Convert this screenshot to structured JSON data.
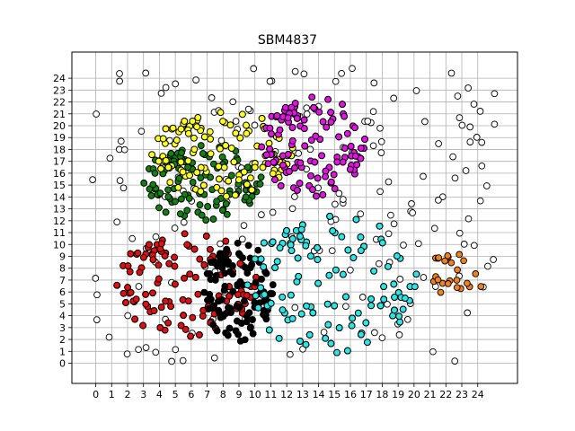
{
  "chart_data": {
    "type": "scatter",
    "title": "SBM4837",
    "xlabel": "",
    "ylabel": "",
    "xlim": [
      -1.5,
      26.5
    ],
    "ylim": [
      -1.7,
      26.2
    ],
    "xticks": [
      0,
      1,
      2,
      3,
      4,
      5,
      6,
      7,
      8,
      9,
      10,
      11,
      12,
      13,
      14,
      15,
      16,
      17,
      18,
      19,
      20,
      21,
      22,
      23,
      24
    ],
    "yticks": [
      0,
      1,
      2,
      3,
      4,
      5,
      6,
      7,
      8,
      9,
      10,
      11,
      12,
      13,
      14,
      15,
      16,
      17,
      18,
      19,
      20,
      21,
      22,
      23,
      24
    ],
    "grid": true,
    "marker_edge_color": "#000000",
    "clusters": [
      {
        "color": "#ffffff",
        "x_range": [
          -0.2,
          25.2
        ],
        "y_range": [
          0.0,
          24.9
        ],
        "approx_points": 190
      },
      {
        "color": "#e01010",
        "x_range": [
          1.3,
          10.2
        ],
        "y_range": [
          2.2,
          11.0
        ],
        "approx_points": 420
      },
      {
        "color": "#000000",
        "x_range": [
          6.8,
          11.2
        ],
        "y_range": [
          1.8,
          10.2
        ],
        "approx_points": 260
      },
      {
        "color": "#2ae6e6",
        "x_range": [
          9.5,
          20.3
        ],
        "y_range": [
          0.8,
          12.5
        ],
        "approx_points": 620
      },
      {
        "color": "#128012",
        "x_range": [
          3.0,
          10.5
        ],
        "y_range": [
          12.0,
          18.4
        ],
        "approx_points": 220
      },
      {
        "color": "#ffff22",
        "x_range": [
          3.5,
          12.5
        ],
        "y_range": [
          14.0,
          21.2
        ],
        "approx_points": 300
      },
      {
        "color": "#e214e2",
        "x_range": [
          10.4,
          17.0
        ],
        "y_range": [
          14.0,
          22.5
        ],
        "approx_points": 420
      },
      {
        "color": "#f08020",
        "x_range": [
          21.0,
          24.6
        ],
        "y_range": [
          5.5,
          9.7
        ],
        "approx_points": 24
      }
    ]
  }
}
